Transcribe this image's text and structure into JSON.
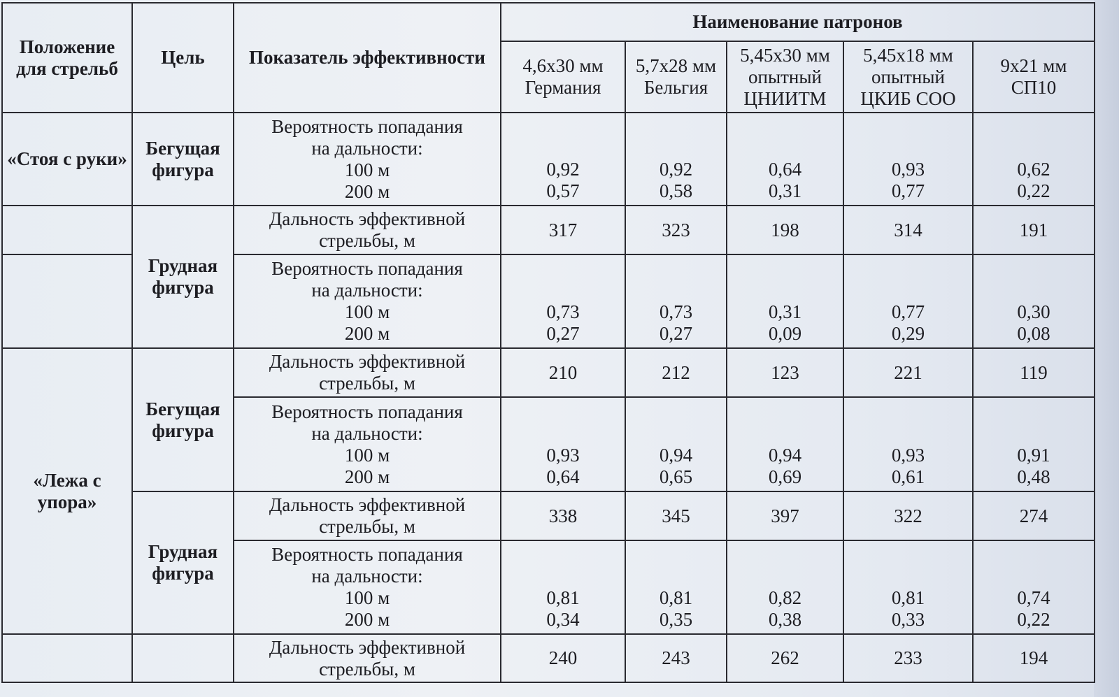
{
  "header": {
    "position": "Положение для стрельб",
    "target": "Цель",
    "indicator": "Показатель эффективности",
    "cartridges_title": "Наименование патронов",
    "cartridges": [
      [
        "4,6х30 мм",
        "Германия"
      ],
      [
        "5,7х28 мм",
        "Бельгия"
      ],
      [
        "5,45х30 мм",
        "опытный",
        "ЦНИИТМ"
      ],
      [
        "5,45х18 мм",
        "опытный",
        "ЦКИБ СОО"
      ],
      [
        "9х21 мм",
        "СП10"
      ]
    ]
  },
  "groups": {
    "standing": "«Стоя с руки»",
    "prone": "«Лежа с упора»",
    "running": "Бегущая фигура",
    "chest": "Грудная фигура"
  },
  "indicators": {
    "prob": [
      "Вероятность попадания",
      "на дальности:",
      "100 м",
      "200 м"
    ],
    "range": [
      "Дальность эффективной",
      "стрельбы, м"
    ]
  },
  "rows": [
    {
      "kind": "prob",
      "values": [
        [
          "0,92",
          "0,57"
        ],
        [
          "0,92",
          "0,58"
        ],
        [
          "0,64",
          "0,31"
        ],
        [
          "0,93",
          "0,77"
        ],
        [
          "0,62",
          "0,22"
        ]
      ]
    },
    {
      "kind": "range",
      "values": [
        [
          "317"
        ],
        [
          "323"
        ],
        [
          "198"
        ],
        [
          "314"
        ],
        [
          "191"
        ]
      ]
    },
    {
      "kind": "prob",
      "values": [
        [
          "0,73",
          "0,27"
        ],
        [
          "0,73",
          "0,27"
        ],
        [
          "0,31",
          "0,09"
        ],
        [
          "0,77",
          "0,29"
        ],
        [
          "0,30",
          "0,08"
        ]
      ]
    },
    {
      "kind": "range",
      "values": [
        [
          "210"
        ],
        [
          "212"
        ],
        [
          "123"
        ],
        [
          "221"
        ],
        [
          "119"
        ]
      ]
    },
    {
      "kind": "prob",
      "values": [
        [
          "0,93",
          "0,64"
        ],
        [
          "0,94",
          "0,65"
        ],
        [
          "0,94",
          "0,69"
        ],
        [
          "0,93",
          "0,61"
        ],
        [
          "0,91",
          "0,48"
        ]
      ]
    },
    {
      "kind": "range",
      "values": [
        [
          "338"
        ],
        [
          "345"
        ],
        [
          "397"
        ],
        [
          "322"
        ],
        [
          "274"
        ]
      ]
    },
    {
      "kind": "prob",
      "values": [
        [
          "0,81",
          "0,34"
        ],
        [
          "0,81",
          "0,35"
        ],
        [
          "0,82",
          "0,38"
        ],
        [
          "0,81",
          "0,33"
        ],
        [
          "0,74",
          "0,22"
        ]
      ]
    },
    {
      "kind": "range",
      "values": [
        [
          "240"
        ],
        [
          "243"
        ],
        [
          "262"
        ],
        [
          "233"
        ],
        [
          "194"
        ]
      ]
    }
  ]
}
